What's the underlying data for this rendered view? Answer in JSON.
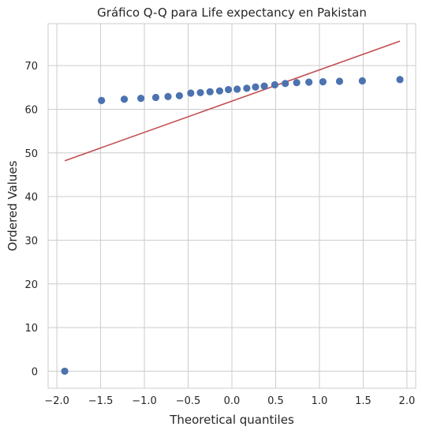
{
  "chart_data": {
    "type": "scatter",
    "title": "Gráfico Q-Q para Life expectancy en Pakistan",
    "xlabel": "Theoretical quantiles",
    "ylabel": "Ordered Values",
    "xlim": [
      -2.1,
      2.1
    ],
    "ylim": [
      -3.9,
      79.6
    ],
    "xticks": [
      -2.0,
      -1.5,
      -1.0,
      -0.5,
      0.0,
      0.5,
      1.0,
      1.5,
      2.0
    ],
    "xtick_labels": [
      "−2.0",
      "−1.5",
      "−1.0",
      "−0.5",
      "0.0",
      "0.5",
      "1.0",
      "1.5",
      "2.0"
    ],
    "yticks": [
      0,
      10,
      20,
      30,
      40,
      50,
      60,
      70
    ],
    "ytick_labels": [
      "0",
      "10",
      "20",
      "30",
      "40",
      "50",
      "60",
      "70"
    ],
    "grid": true,
    "series": [
      {
        "kind": "points",
        "color": "#4c72b0",
        "x": [
          -1.91,
          -1.49,
          -1.23,
          -1.04,
          -0.87,
          -0.73,
          -0.6,
          -0.47,
          -0.36,
          -0.25,
          -0.14,
          -0.04,
          0.06,
          0.17,
          0.27,
          0.37,
          0.49,
          0.61,
          0.74,
          0.88,
          1.04,
          1.23,
          1.49,
          1.92
        ],
        "y": [
          0.0,
          62.0,
          62.3,
          62.5,
          62.7,
          62.9,
          63.1,
          63.7,
          63.8,
          64.0,
          64.2,
          64.5,
          64.6,
          64.8,
          65.1,
          65.3,
          65.6,
          65.9,
          66.1,
          66.2,
          66.3,
          66.4,
          66.5,
          66.8
        ]
      },
      {
        "kind": "fit-line",
        "color": "#c44e52",
        "x": [
          -1.91,
          1.92
        ],
        "y": [
          48.2,
          75.6
        ]
      }
    ]
  }
}
